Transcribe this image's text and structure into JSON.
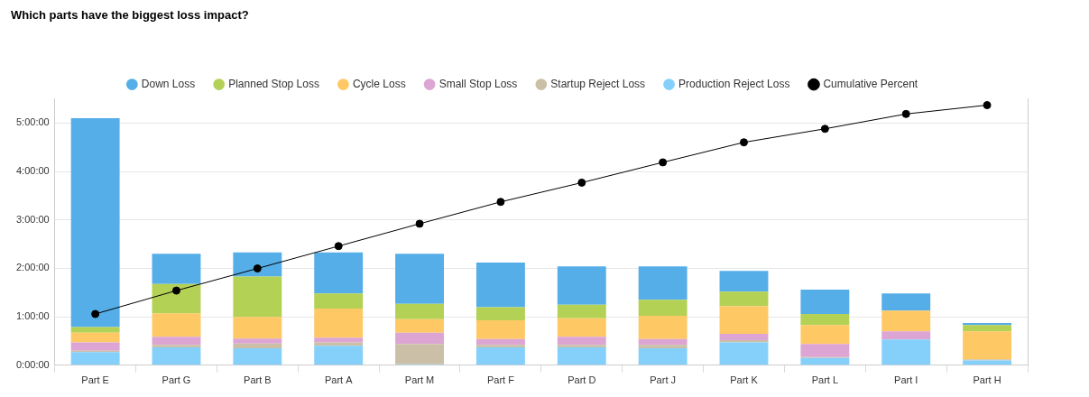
{
  "chart_data": {
    "type": "bar",
    "title": "Which parts have the biggest loss impact?",
    "categories": [
      "Part E",
      "Part G",
      "Part B",
      "Part A",
      "Part M",
      "Part F",
      "Part D",
      "Part J",
      "Part K",
      "Part L",
      "Part I",
      "Part H"
    ],
    "series": [
      {
        "name": "Down Loss",
        "color": "#55aee8",
        "values": [
          4.31,
          0.62,
          0.5,
          0.85,
          1.03,
          0.92,
          0.79,
          0.69,
          0.43,
          0.5,
          0.35,
          0.04
        ]
      },
      {
        "name": "Planned Stop Loss",
        "color": "#b3d155",
        "values": [
          0.12,
          0.61,
          0.83,
          0.31,
          0.32,
          0.27,
          0.28,
          0.33,
          0.3,
          0.23,
          0,
          0.13
        ]
      },
      {
        "name": "Cycle Loss",
        "color": "#fec865",
        "values": [
          0.2,
          0.48,
          0.45,
          0.6,
          0.28,
          0.39,
          0.38,
          0.48,
          0.57,
          0.39,
          0.43,
          0.58
        ]
      },
      {
        "name": "Small Stop Loss",
        "color": "#dca5d3",
        "values": [
          0.17,
          0.17,
          0.1,
          0.1,
          0.23,
          0.12,
          0.17,
          0.12,
          0.13,
          0.27,
          0.17,
          0
        ]
      },
      {
        "name": "Startup Reject Loss",
        "color": "#cbc0a7",
        "values": [
          0.03,
          0.05,
          0.1,
          0.07,
          0.42,
          0.05,
          0.05,
          0.07,
          0.05,
          0.02,
          0,
          0.02
        ]
      },
      {
        "name": "Production Reject Loss",
        "color": "#85d0fb",
        "values": [
          0.27,
          0.37,
          0.35,
          0.4,
          0.02,
          0.37,
          0.37,
          0.35,
          0.47,
          0.15,
          0.53,
          0.1
        ]
      },
      {
        "name": "Cumulative Percent",
        "color": "#000000",
        "type": "line",
        "axis": "y2",
        "marker": "circle",
        "line_style": "solid",
        "values": [
          19.7,
          28.7,
          37.2,
          45.8,
          54.4,
          62.8,
          70.2,
          78.0,
          85.7,
          90.9,
          96.6,
          100
        ]
      }
    ],
    "ylim": [
      0,
      5.5
    ],
    "yticks": [
      {
        "value": 0,
        "label": "0:00:00"
      },
      {
        "value": 1,
        "label": "1:00:00"
      },
      {
        "value": 2,
        "label": "2:00:00"
      },
      {
        "value": 3,
        "label": "3:00:00"
      },
      {
        "value": 4,
        "label": "4:00:00"
      },
      {
        "value": 5,
        "label": "5:00:00"
      }
    ],
    "y2lim": [
      0,
      102.4
    ],
    "stacked": true,
    "grid": true,
    "legend": "top"
  }
}
